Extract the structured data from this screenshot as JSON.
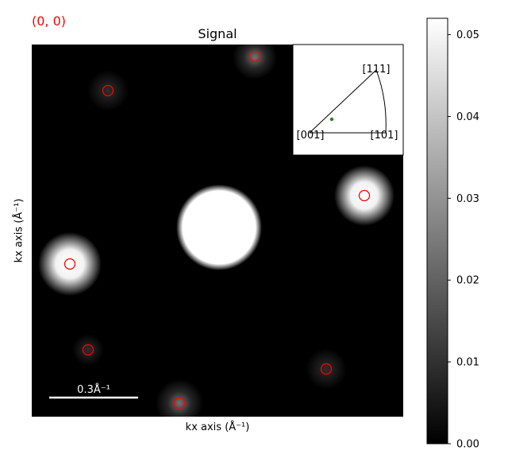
{
  "coordinate_label": "(0, 0)",
  "title": "Signal",
  "xlabel": "kx axis (Å⁻¹)",
  "ylabel": "kx axis (Å⁻¹)",
  "scale_bar": {
    "label": "0.3Å⁻¹"
  },
  "inset": {
    "labels": {
      "top": "[111]",
      "left": "[001]",
      "right": "[101]"
    },
    "marker_color": "#1a8a1a"
  },
  "colors": {
    "marker": "#ff0000",
    "coordinate_label": "#ff0000"
  },
  "colorbar": {
    "min": 0.0,
    "max": 0.052,
    "ticks": [
      "0.00",
      "0.01",
      "0.02",
      "0.03",
      "0.04",
      "0.05"
    ],
    "colormap": "gray"
  }
}
